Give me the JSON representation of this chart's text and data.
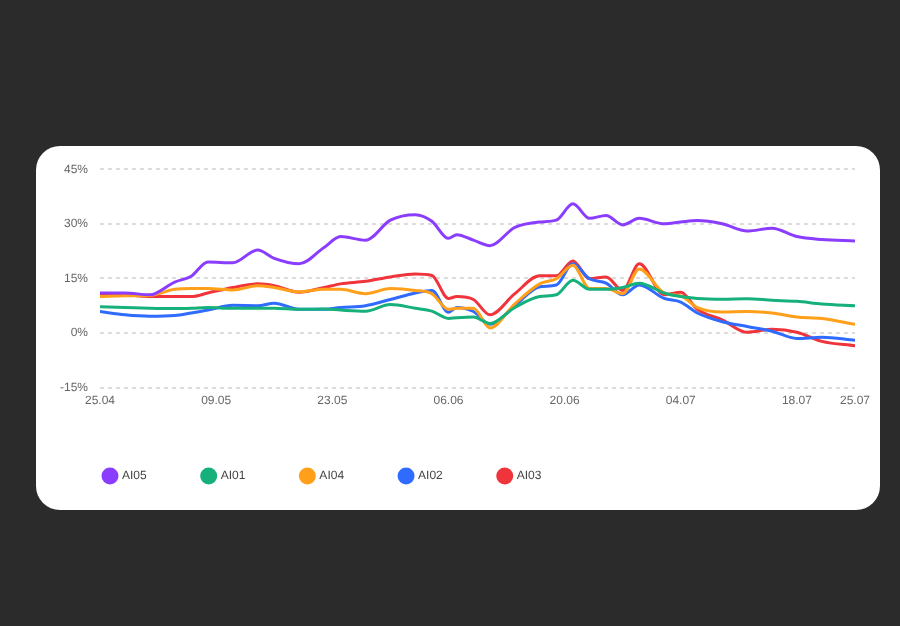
{
  "chart_data": {
    "type": "line",
    "x": [
      "--04-25",
      "--04-28",
      "--05-01",
      "--05-04",
      "--05-06",
      "--05-08",
      "--05-11",
      "--05-14",
      "--05-16",
      "--05-19",
      "--05-22",
      "--05-24",
      "--05-27",
      "--05-30",
      "--06-02",
      "--06-04",
      "--06-06",
      "--06-07",
      "--06-09",
      "--06-11",
      "--06-14",
      "--06-17",
      "--06-19",
      "--06-21",
      "--06-23",
      "--06-25",
      "--06-27",
      "--06-29",
      "--07-02",
      "--07-04",
      "--07-06",
      "--07-09",
      "--07-12",
      "--07-15",
      "--07-18",
      "--07-21",
      "--07-25"
    ],
    "series": [
      {
        "name": "AI05",
        "color": "#8b3dff",
        "values": [
          11,
          11,
          10.5,
          14,
          15.6,
          19.5,
          19.3,
          22.8,
          20.5,
          19,
          23.5,
          26.5,
          25.5,
          31,
          32.5,
          30.7,
          26,
          27,
          25.5,
          24,
          29,
          30.5,
          31,
          35.5,
          31.5,
          32.3,
          29.7,
          31.5,
          30,
          30.5,
          30.9,
          30,
          28,
          28.8,
          26.5,
          25.7,
          25.3
        ]
      },
      {
        "name": "AI01",
        "color": "#16b07a",
        "values": [
          7.2,
          7,
          6.8,
          6.7,
          6.8,
          7,
          6.8,
          6.8,
          6.8,
          6.5,
          6.6,
          6.3,
          6,
          7.8,
          6.8,
          6,
          4,
          4.2,
          4.4,
          2.6,
          7,
          10,
          10.5,
          14.5,
          12,
          12,
          12.5,
          13.7,
          11,
          10,
          9.5,
          9.3,
          9.4,
          9,
          8.7,
          8,
          7.5
        ]
      },
      {
        "name": "AI04",
        "color": "#ff9f1a",
        "values": [
          10,
          10.2,
          10.3,
          12,
          12.2,
          12.2,
          11.8,
          13,
          12.5,
          11.3,
          12,
          12,
          10.8,
          12.2,
          11.7,
          10.8,
          6.5,
          6.8,
          6.8,
          1.4,
          8,
          13.5,
          14.9,
          18.6,
          12.2,
          12.2,
          10.8,
          17.6,
          11,
          10.2,
          7,
          5.8,
          5.9,
          5.5,
          4.4,
          4,
          2.4
        ]
      },
      {
        "name": "AI02",
        "color": "#2f6bff",
        "values": [
          5.9,
          5,
          4.6,
          4.8,
          5.5,
          6.3,
          7.6,
          7.5,
          8.2,
          6.5,
          6.5,
          7,
          7.5,
          9.2,
          11,
          11.7,
          5.7,
          7,
          5.9,
          2.4,
          7.5,
          12.7,
          13.2,
          19,
          14.9,
          13.7,
          10.5,
          13.2,
          9.5,
          8.5,
          5.5,
          3.1,
          1.8,
          0.5,
          -1.5,
          -1.2,
          -2
        ]
      },
      {
        "name": "AI03",
        "color": "#f0343c",
        "values": [
          10.8,
          10.5,
          10,
          10,
          10,
          11,
          12.5,
          13.5,
          13,
          11.2,
          12.5,
          13.5,
          14.2,
          15.4,
          16.2,
          15.8,
          9.5,
          10,
          9.2,
          5,
          10.8,
          15.7,
          15.7,
          19.8,
          14.9,
          15.4,
          11.7,
          19,
          10.5,
          11.2,
          6.5,
          3.6,
          0.2,
          1,
          0.2,
          -2.3,
          -3.5
        ]
      }
    ],
    "xlim": [
      "--04-25",
      "--07-25"
    ],
    "xticks": [
      {
        "value": "--04-25",
        "label": "25.04"
      },
      {
        "value": "--05-09",
        "label": "09.05"
      },
      {
        "value": "--05-23",
        "label": "23.05"
      },
      {
        "value": "--06-06",
        "label": "06.06"
      },
      {
        "value": "--06-20",
        "label": "20.06"
      },
      {
        "value": "--07-04",
        "label": "04.07"
      },
      {
        "value": "--07-18",
        "label": "18.07"
      },
      {
        "value": "--07-25",
        "label": "25.07"
      }
    ],
    "ylim": [
      -15,
      45
    ],
    "yticks": [
      {
        "value": -15,
        "label": "-15%"
      },
      {
        "value": 0,
        "label": "0%"
      },
      {
        "value": 15,
        "label": "15%"
      },
      {
        "value": 30,
        "label": "30%"
      },
      {
        "value": 45,
        "label": "45%"
      }
    ],
    "grid": "y",
    "legend": "bottom",
    "marker": "none",
    "line_style": "solid"
  }
}
